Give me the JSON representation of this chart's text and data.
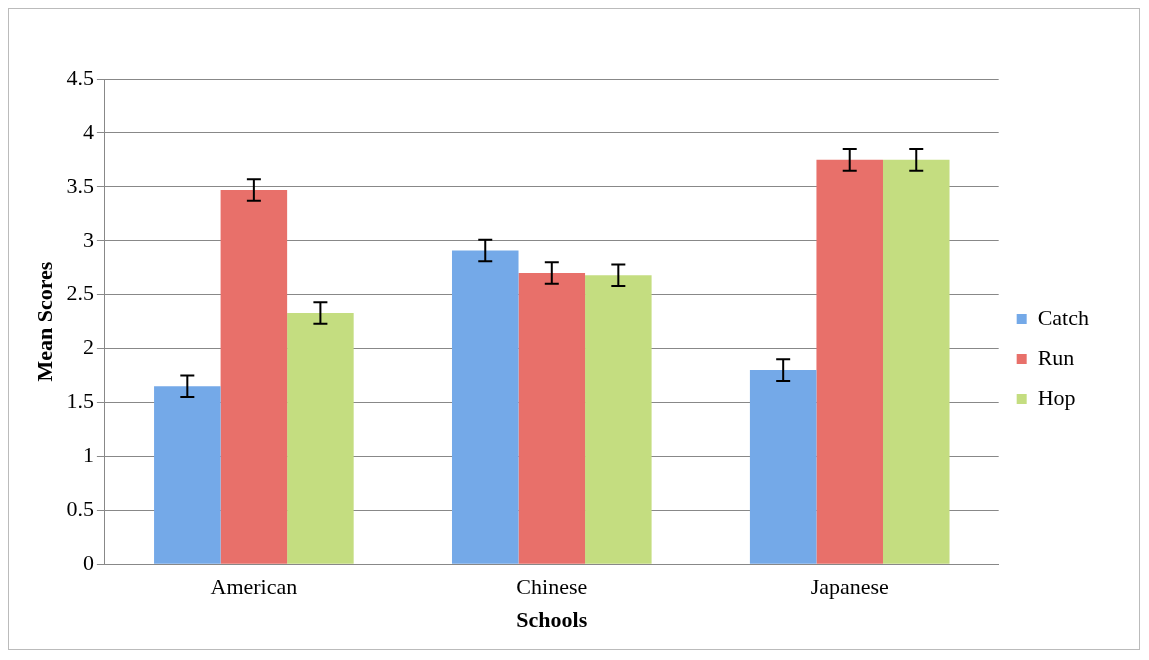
{
  "chart_data": {
    "type": "bar",
    "xlabel": "Schools",
    "ylabel": "Mean Scores",
    "categories": [
      "American",
      "Chinese",
      "Japanese"
    ],
    "series": [
      {
        "name": "Catch",
        "color": "#74a9e8",
        "values": [
          1.65,
          2.91,
          1.8
        ],
        "errors": [
          0.1,
          0.1,
          0.1
        ]
      },
      {
        "name": "Run",
        "color": "#e8706a",
        "values": [
          3.47,
          2.7,
          3.75
        ],
        "errors": [
          0.1,
          0.1,
          0.1
        ]
      },
      {
        "name": "Hop",
        "color": "#c4dd80",
        "values": [
          2.33,
          2.68,
          3.75
        ],
        "errors": [
          0.1,
          0.1,
          0.1
        ]
      }
    ],
    "ylim": [
      0,
      4.5
    ],
    "yticks": [
      0,
      0.5,
      1,
      1.5,
      2,
      2.5,
      3,
      3.5,
      4,
      4.5
    ],
    "grid": "y",
    "legend": "right"
  }
}
